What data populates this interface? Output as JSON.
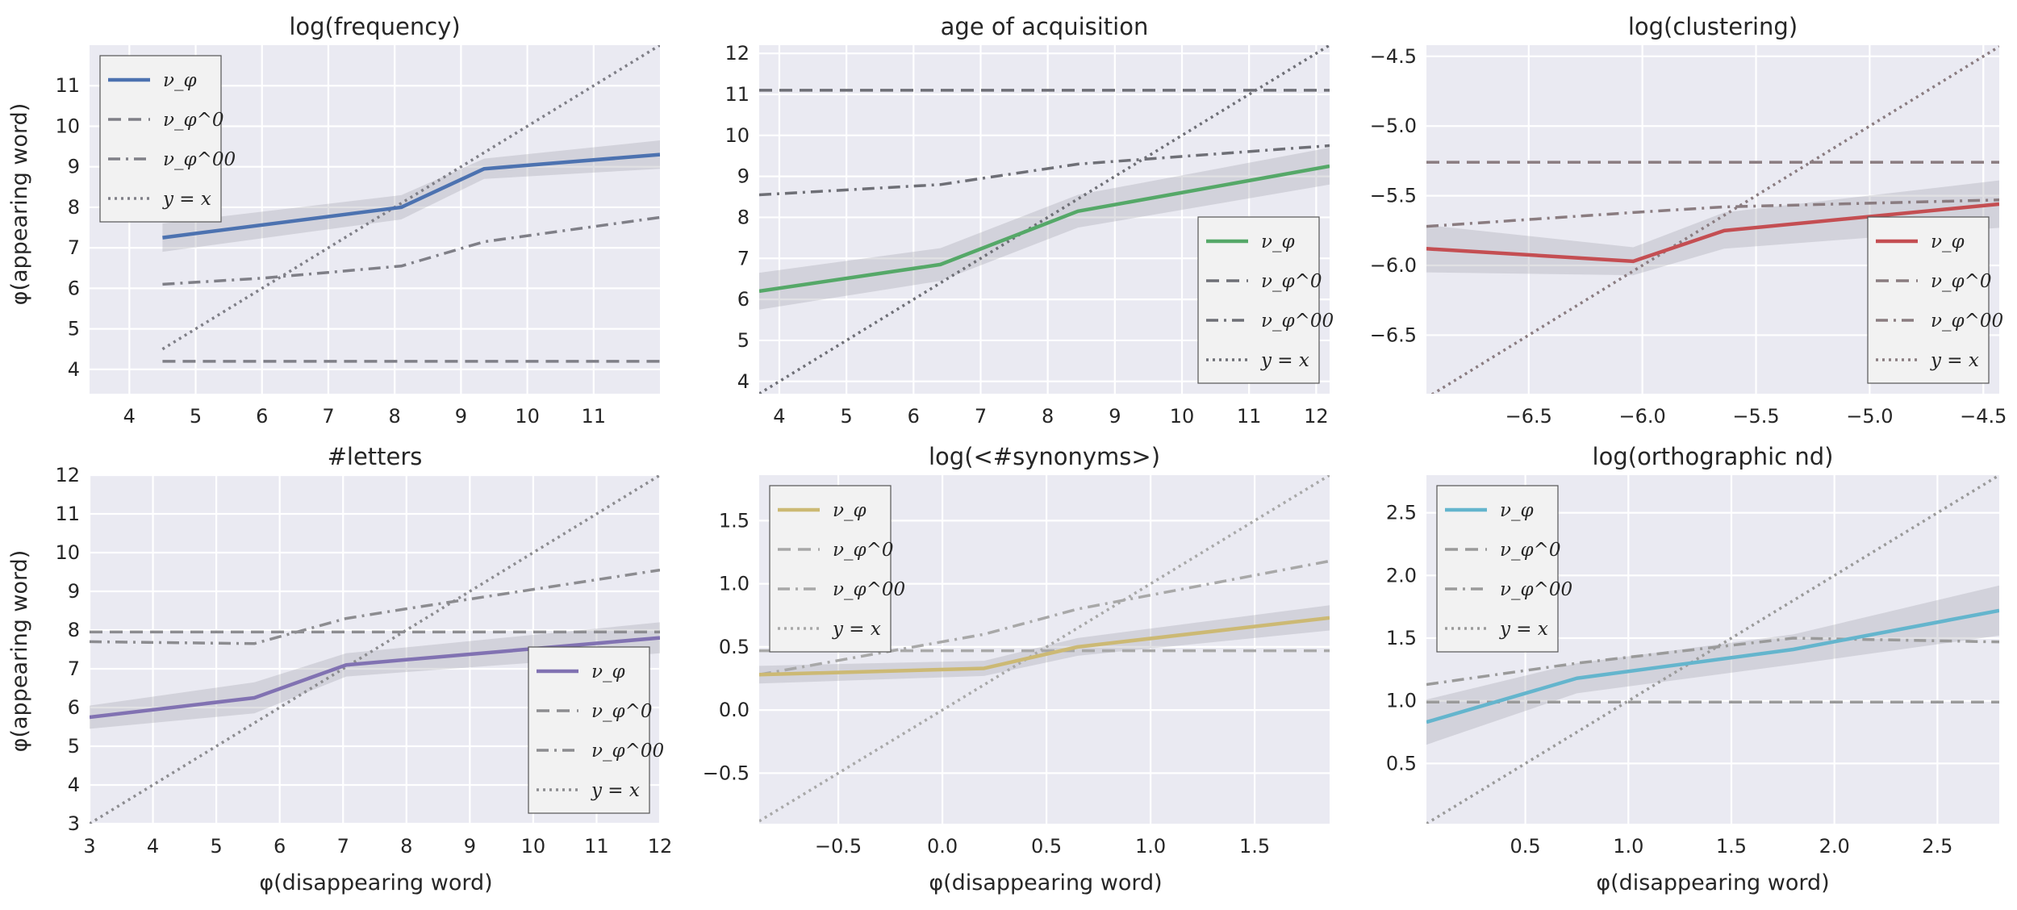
{
  "axis_labels": {
    "y": "φ(appearing word)",
    "x": "φ(disappearing word)"
  },
  "legend_labels": [
    "ν_φ",
    "ν_φ^0",
    "ν_φ^00",
    "y = x"
  ],
  "chart_data": [
    {
      "type": "line",
      "title": "log(frequency)",
      "color": "#4c72b0",
      "xlim": [
        3.4,
        12.0
      ],
      "ylim": [
        3.4,
        12.0
      ],
      "xticks": [
        4,
        5,
        6,
        7,
        8,
        9,
        10,
        11
      ],
      "yticks": [
        4,
        5,
        6,
        7,
        8,
        9,
        10,
        11
      ],
      "xtick_labels": [
        "4",
        "5",
        "6",
        "7",
        "8",
        "9",
        "10",
        "11"
      ],
      "ytick_labels": [
        "4",
        "5",
        "6",
        "7",
        "8",
        "9",
        "10",
        "11"
      ],
      "show_ylabel": true,
      "show_xlabel": false,
      "legend": "top-left",
      "grid": true,
      "series": [
        {
          "name": "ν_φ",
          "style": "solid",
          "x": [
            4.5,
            8.1,
            9.35,
            12.0
          ],
          "y": [
            7.25,
            8.0,
            8.95,
            9.3
          ],
          "band": [
            0.35,
            0.3,
            0.25,
            0.35
          ]
        },
        {
          "name": "ν_φ^0",
          "style": "dashed",
          "x": [
            4.5,
            12.0
          ],
          "y": [
            4.2,
            4.2
          ]
        },
        {
          "name": "ν_φ^00",
          "style": "dashdot",
          "x": [
            4.5,
            6.0,
            8.1,
            9.35,
            12.0
          ],
          "y": [
            6.1,
            6.25,
            6.55,
            7.15,
            7.75
          ]
        },
        {
          "name": "y = x",
          "style": "dotted",
          "x": [
            4.5,
            12.0
          ],
          "y": [
            4.5,
            12.0
          ]
        }
      ]
    },
    {
      "type": "line",
      "title": "age of acquisition",
      "color": "#55a868",
      "xlim": [
        3.7,
        12.2
      ],
      "ylim": [
        3.7,
        12.2
      ],
      "xticks": [
        4,
        5,
        6,
        7,
        8,
        9,
        10,
        11,
        12
      ],
      "yticks": [
        4,
        5,
        6,
        7,
        8,
        9,
        10,
        11,
        12
      ],
      "xtick_labels": [
        "4",
        "5",
        "6",
        "7",
        "8",
        "9",
        "10",
        "11",
        "12"
      ],
      "ytick_labels": [
        "4",
        "5",
        "6",
        "7",
        "8",
        "9",
        "10",
        "11",
        "12"
      ],
      "show_ylabel": false,
      "show_xlabel": false,
      "legend": "bottom-right",
      "grid": true,
      "series": [
        {
          "name": "ν_φ",
          "style": "solid",
          "x": [
            3.7,
            6.4,
            8.45,
            12.2
          ],
          "y": [
            6.2,
            6.85,
            8.15,
            9.25
          ],
          "band": [
            0.45,
            0.4,
            0.4,
            0.45
          ]
        },
        {
          "name": "ν_φ^0",
          "style": "dashed",
          "x": [
            3.7,
            12.2
          ],
          "y": [
            11.1,
            11.1
          ]
        },
        {
          "name": "ν_φ^00",
          "style": "dashdot",
          "x": [
            3.7,
            6.4,
            8.45,
            12.2
          ],
          "y": [
            8.55,
            8.8,
            9.3,
            9.75
          ]
        },
        {
          "name": "y = x",
          "style": "dotted",
          "x": [
            3.7,
            12.2
          ],
          "y": [
            3.7,
            12.2
          ]
        }
      ]
    },
    {
      "type": "line",
      "title": "log(clustering)",
      "color": "#c44e52",
      "xlim": [
        -6.95,
        -4.43
      ],
      "ylim": [
        -6.92,
        -4.42
      ],
      "xticks": [
        -6.5,
        -6.0,
        -5.5,
        -5.0,
        -4.5
      ],
      "yticks": [
        -6.5,
        -6.0,
        -5.5,
        -5.0,
        -4.5
      ],
      "xtick_labels": [
        "−6.5",
        "−6.0",
        "−5.5",
        "−5.0",
        "−4.5"
      ],
      "ytick_labels": [
        "−6.5",
        "−6.0",
        "−5.5",
        "−5.0",
        "−4.5"
      ],
      "show_ylabel": false,
      "show_xlabel": false,
      "legend": "bottom-right",
      "grid": true,
      "series": [
        {
          "name": "ν_φ",
          "style": "solid",
          "x": [
            -6.95,
            -6.04,
            -5.64,
            -4.43
          ],
          "y": [
            -5.88,
            -5.97,
            -5.75,
            -5.56
          ],
          "band": [
            0.17,
            0.1,
            0.13,
            0.17
          ]
        },
        {
          "name": "ν_φ^0",
          "style": "dashed",
          "x": [
            -6.95,
            -4.43
          ],
          "y": [
            -5.26,
            -5.26
          ]
        },
        {
          "name": "ν_φ^00",
          "style": "dashdot",
          "x": [
            -6.95,
            -6.04,
            -5.64,
            -4.43
          ],
          "y": [
            -5.72,
            -5.62,
            -5.58,
            -5.53
          ]
        },
        {
          "name": "y = x",
          "style": "dotted",
          "x": [
            -6.95,
            -4.43
          ],
          "y": [
            -6.95,
            -4.43
          ]
        }
      ]
    },
    {
      "type": "line",
      "title": "#letters",
      "color": "#8172b2",
      "xlim": [
        3.0,
        12.0
      ],
      "ylim": [
        3.0,
        12.0
      ],
      "xticks": [
        3,
        4,
        5,
        6,
        7,
        8,
        9,
        10,
        11,
        12
      ],
      "yticks": [
        3,
        4,
        5,
        6,
        7,
        8,
        9,
        10,
        11,
        12
      ],
      "xtick_labels": [
        "3",
        "4",
        "5",
        "6",
        "7",
        "8",
        "9",
        "10",
        "11",
        "12"
      ],
      "ytick_labels": [
        "3",
        "4",
        "5",
        "6",
        "7",
        "8",
        "9",
        "10",
        "11",
        "12"
      ],
      "show_ylabel": true,
      "show_xlabel": true,
      "legend": "bottom-right",
      "grid": true,
      "series": [
        {
          "name": "ν_φ",
          "style": "solid",
          "x": [
            3.0,
            5.6,
            7.05,
            12.0
          ],
          "y": [
            5.75,
            6.25,
            7.1,
            7.8
          ],
          "band": [
            0.3,
            0.4,
            0.3,
            0.4
          ]
        },
        {
          "name": "ν_φ^0",
          "style": "dashed",
          "x": [
            3.0,
            12.0
          ],
          "y": [
            7.95,
            7.95
          ]
        },
        {
          "name": "ν_φ^00",
          "style": "dashdot",
          "x": [
            3.0,
            5.6,
            7.05,
            8.0,
            12.0
          ],
          "y": [
            7.7,
            7.65,
            8.3,
            8.55,
            9.55
          ]
        },
        {
          "name": "y = x",
          "style": "dotted",
          "x": [
            3.0,
            12.0
          ],
          "y": [
            3.0,
            12.0
          ]
        }
      ]
    },
    {
      "type": "line",
      "title": "log(<#synonyms>)",
      "color": "#ccb974",
      "xlim": [
        -0.88,
        1.86
      ],
      "ylim": [
        -0.9,
        1.86
      ],
      "xticks": [
        -0.5,
        0.0,
        0.5,
        1.0,
        1.5
      ],
      "yticks": [
        -0.5,
        0.0,
        0.5,
        1.0,
        1.5
      ],
      "xtick_labels": [
        "−0.5",
        "0.0",
        "0.5",
        "1.0",
        "1.5"
      ],
      "ytick_labels": [
        "−0.5",
        "0.0",
        "0.5",
        "1.0",
        "1.5"
      ],
      "show_ylabel": false,
      "show_xlabel": true,
      "legend": "top-left",
      "grid": true,
      "series": [
        {
          "name": "ν_φ",
          "style": "solid",
          "x": [
            -0.88,
            0.2,
            0.65,
            1.86
          ],
          "y": [
            0.28,
            0.33,
            0.5,
            0.73
          ],
          "band": [
            0.07,
            0.06,
            0.07,
            0.1
          ]
        },
        {
          "name": "ν_φ^0",
          "style": "dashed",
          "x": [
            -0.88,
            1.86
          ],
          "y": [
            0.47,
            0.47
          ]
        },
        {
          "name": "ν_φ^00",
          "style": "dashdot",
          "x": [
            -0.88,
            0.2,
            0.65,
            1.86
          ],
          "y": [
            0.28,
            0.6,
            0.8,
            1.18
          ]
        },
        {
          "name": "y = x",
          "style": "dotted",
          "x": [
            -0.88,
            1.86
          ],
          "y": [
            -0.88,
            1.86
          ]
        }
      ]
    },
    {
      "type": "line",
      "title": "log(orthographic nd)",
      "color": "#64b5cd",
      "xlim": [
        0.02,
        2.8
      ],
      "ylim": [
        0.02,
        2.8
      ],
      "xticks": [
        0.5,
        1.0,
        1.5,
        2.0,
        2.5
      ],
      "yticks": [
        0.5,
        1.0,
        1.5,
        2.0,
        2.5
      ],
      "xtick_labels": [
        "0.5",
        "1.0",
        "1.5",
        "2.0",
        "2.5"
      ],
      "ytick_labels": [
        "0.5",
        "1.0",
        "1.5",
        "2.0",
        "2.5"
      ],
      "show_ylabel": false,
      "show_xlabel": true,
      "legend": "top-left",
      "grid": true,
      "series": [
        {
          "name": "ν_φ",
          "style": "solid",
          "x": [
            0.02,
            0.75,
            1.8,
            2.8
          ],
          "y": [
            0.83,
            1.18,
            1.41,
            1.72
          ],
          "band": [
            0.18,
            0.12,
            0.12,
            0.2
          ]
        },
        {
          "name": "ν_φ^0",
          "style": "dashed",
          "x": [
            0.02,
            2.8
          ],
          "y": [
            0.99,
            0.99
          ]
        },
        {
          "name": "ν_φ^00",
          "style": "dashdot",
          "x": [
            0.02,
            0.75,
            1.8,
            2.8
          ],
          "y": [
            1.13,
            1.3,
            1.5,
            1.47
          ]
        },
        {
          "name": "y = x",
          "style": "dotted",
          "x": [
            0.02,
            2.8
          ],
          "y": [
            0.02,
            2.8
          ]
        }
      ]
    }
  ]
}
